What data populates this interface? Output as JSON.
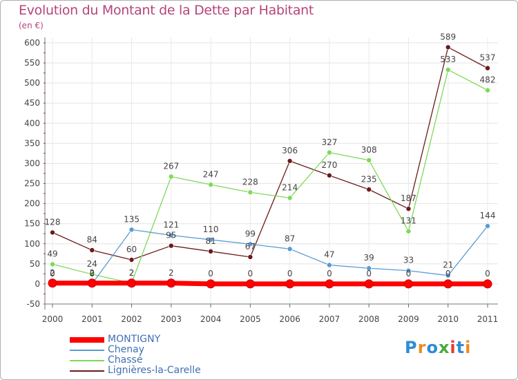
{
  "header": {
    "title": "Evolution du Montant de la Dette par Habitant",
    "unit": "(en €)"
  },
  "logo": {
    "text": "Proxiti",
    "colors": [
      "#2e8bd6",
      "#f08a1c",
      "#2e8bd6",
      "#4aa83a",
      "#e53935",
      "#2e8bd6",
      "#f08a1c"
    ]
  },
  "chart_data": {
    "type": "line",
    "title": "Evolution du Montant de la Dette par Habitant",
    "ylabel": "(en €)",
    "xlabel": "",
    "x": [
      "2000",
      "2001",
      "2002",
      "2003",
      "2004",
      "2005",
      "2006",
      "2007",
      "2008",
      "2009",
      "2010",
      "2011"
    ],
    "ylim": [
      -50,
      600
    ],
    "yticks": [
      -50,
      0,
      50,
      100,
      150,
      200,
      250,
      300,
      350,
      400,
      450,
      500,
      550,
      600
    ],
    "grid": true,
    "legend_position": "bottom-left",
    "series": [
      {
        "name": "MONTIGNY",
        "color": "#ff0000",
        "values": [
          2,
          2,
          2,
          2,
          0,
          0,
          0,
          0,
          0,
          0,
          0,
          0
        ],
        "labels": [
          "2",
          "2",
          "2",
          "2",
          "0",
          "0",
          "0",
          "0",
          "0",
          "0",
          "0",
          "0"
        ]
      },
      {
        "name": "Chenay",
        "color": "#5a9bd5",
        "values": [
          0,
          0,
          135,
          121,
          110,
          99,
          87,
          47,
          39,
          33,
          21,
          144
        ],
        "labels": [
          "0",
          "0",
          "135",
          "121",
          "110",
          "99",
          "87",
          "47",
          "39",
          "33",
          "21",
          "144"
        ]
      },
      {
        "name": "Chassé",
        "color": "#7ed957",
        "values": [
          49,
          24,
          2,
          267,
          247,
          228,
          214,
          327,
          308,
          131,
          533,
          482
        ],
        "labels": [
          "49",
          "24",
          "2",
          "267",
          "247",
          "228",
          "214",
          "327",
          "308",
          "131",
          "533",
          "482"
        ]
      },
      {
        "name": "Lignières-la-Carelle",
        "color": "#6b1a1a",
        "values": [
          128,
          84,
          60,
          95,
          81,
          67,
          306,
          270,
          235,
          187,
          589,
          537
        ],
        "labels": [
          "128",
          "84",
          "60",
          "95",
          "81",
          "67",
          "306",
          "270",
          "235",
          "187",
          "589",
          "537"
        ]
      }
    ]
  }
}
